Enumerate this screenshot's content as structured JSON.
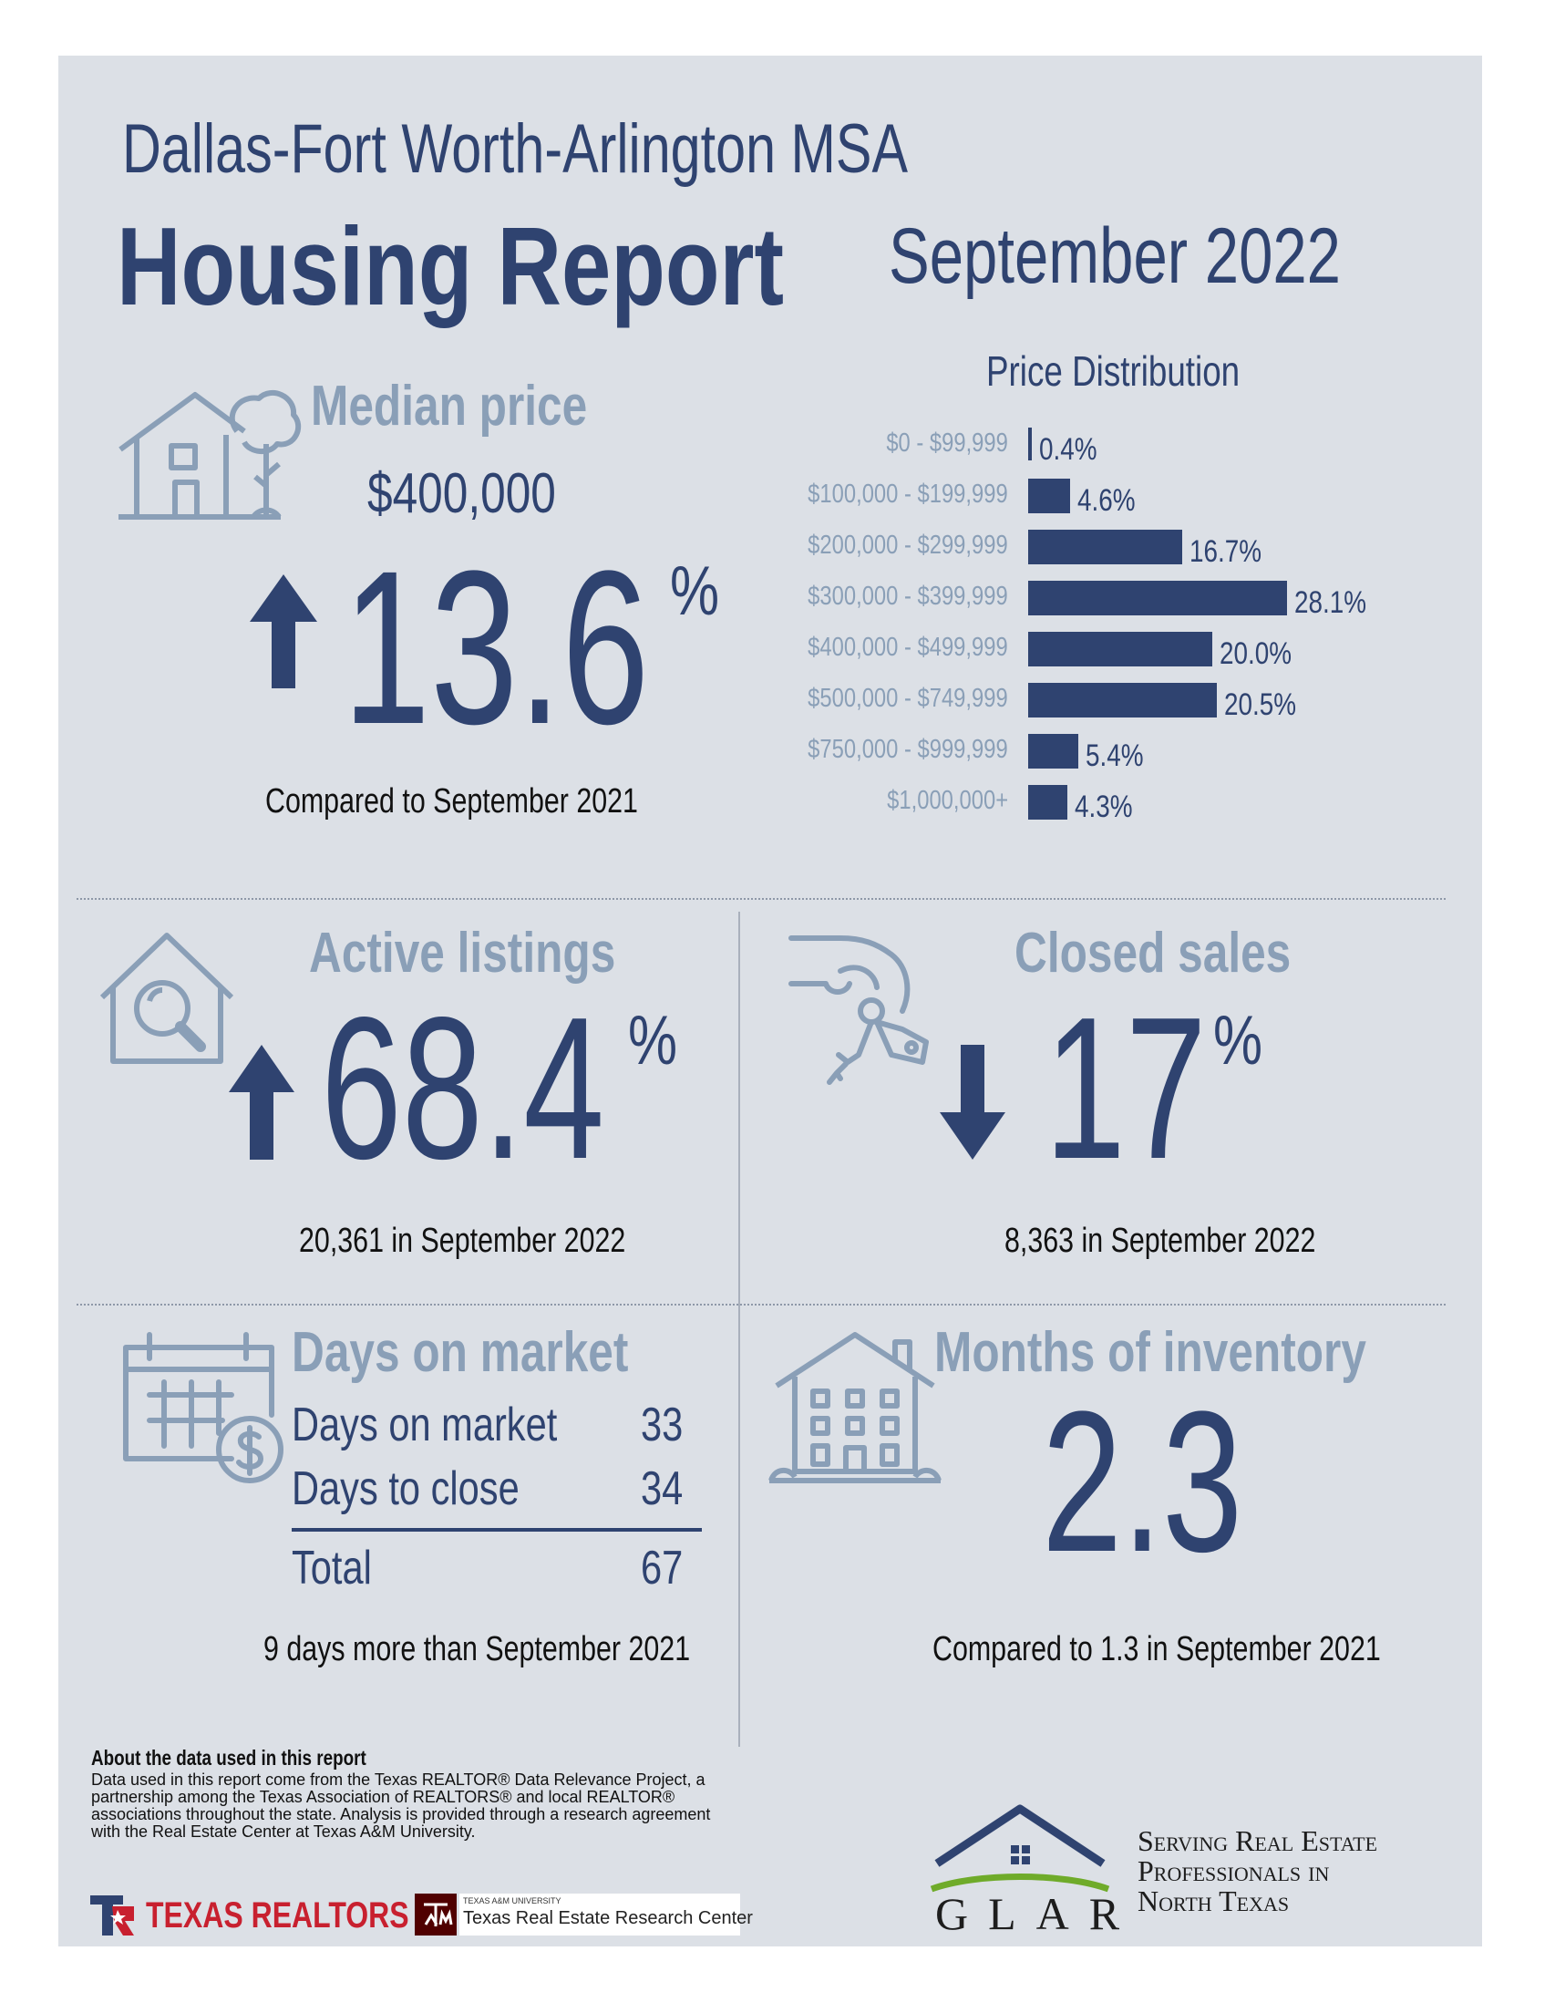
{
  "header": {
    "region": "Dallas-Fort Worth-Arlington MSA",
    "report": "Housing Report",
    "period": "September 2022"
  },
  "median_price": {
    "title": "Median price",
    "value": "$400,000",
    "change": "13.6",
    "unit": "%",
    "direction": "up",
    "comparison": "Compared to September 2021"
  },
  "chart_data": {
    "type": "bar",
    "orientation": "horizontal",
    "title": "Price Distribution",
    "categories": [
      "$0 - $99,999",
      "$100,000 - $199,999",
      "$200,000 - $299,999",
      "$300,000 - $399,999",
      "$400,000 - $499,999",
      "$500,000 - $749,999",
      "$750,000 - $999,999",
      "$1,000,000+"
    ],
    "values": [
      0.4,
      4.6,
      16.7,
      28.1,
      20.0,
      20.5,
      5.4,
      4.3
    ],
    "labels": [
      "0.4%",
      "4.6%",
      "16.7%",
      "28.1%",
      "20.0%",
      "20.5%",
      "5.4%",
      "4.3%"
    ],
    "color": "#2f4370"
  },
  "active_listings": {
    "title": "Active listings",
    "change": "68.4",
    "unit": "%",
    "direction": "up",
    "caption": "20,361 in September 2022"
  },
  "closed_sales": {
    "title": "Closed sales",
    "change": "17",
    "unit": "%",
    "direction": "down",
    "caption": "8,363 in September 2022"
  },
  "days_on_market": {
    "title": "Days on market",
    "rows": [
      {
        "label": "Days on market",
        "value": "33"
      },
      {
        "label": "Days to close",
        "value": "34"
      }
    ],
    "total_label": "Total",
    "total_value": "67",
    "caption": "9 days more than September 2021"
  },
  "months_inventory": {
    "title": "Months of inventory",
    "value": "2.3",
    "caption": "Compared to 1.3 in September 2021"
  },
  "about": {
    "title": "About the data used in this report",
    "text": "Data used in this report come from the Texas REALTOR® Data Relevance Project, a partnership among the Texas Association of REALTORS® and local REALTOR® associations throughout the state. Analysis is provided through a research agreement with the Real Estate Center at Texas A&M University."
  },
  "logos": {
    "texas_realtors": "TEXAS REALTORS",
    "tamu_small": "TEXAS A&M UNIVERSITY",
    "tamu_center": "Texas Real Estate Research Center",
    "glar": "GLAR",
    "glar_tagline": [
      "Serving Real Estate",
      "Professionals in",
      "North Texas"
    ]
  },
  "colors": {
    "navy": "#2f4370",
    "muted": "#8a9fb7",
    "panel": "#dce0e6"
  }
}
